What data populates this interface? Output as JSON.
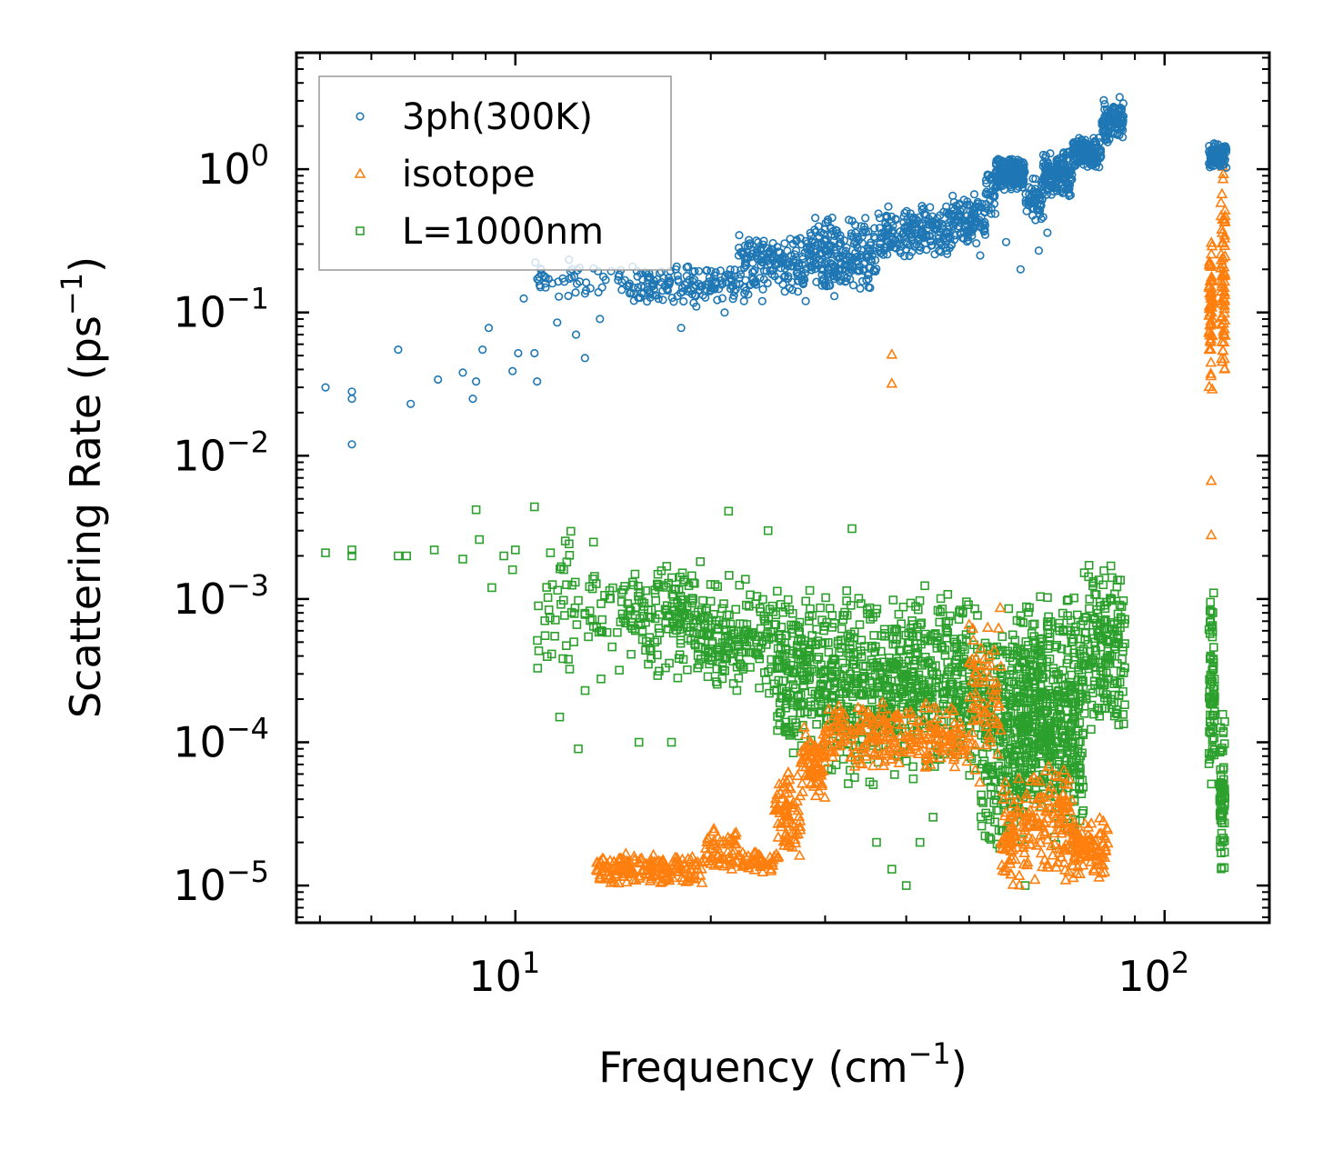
{
  "chart_data": {
    "type": "scatter",
    "title": "",
    "xlabel": {
      "prefix": "Frequency (cm",
      "sup": "−1",
      "suffix": ")"
    },
    "ylabel": {
      "prefix": "Scattering Rate (ps",
      "sup": "−1",
      "suffix": ")"
    },
    "xscale": "log",
    "yscale": "log",
    "xlim": [
      4.6,
      145
    ],
    "ylim": [
      5.5e-06,
      6.5
    ],
    "x_ticks": [
      {
        "base": "10",
        "exp": "1",
        "value": 10
      },
      {
        "base": "10",
        "exp": "2",
        "value": 100
      }
    ],
    "y_ticks": [
      {
        "base": "10",
        "exp": "0",
        "value": 1
      },
      {
        "base": "10",
        "exp": "−1",
        "value": 0.1
      },
      {
        "base": "10",
        "exp": "−2",
        "value": 0.01
      },
      {
        "base": "10",
        "exp": "−3",
        "value": 0.001
      },
      {
        "base": "10",
        "exp": "−4",
        "value": 0.0001
      },
      {
        "base": "10",
        "exp": "−5",
        "value": 1e-05
      }
    ],
    "legend_position": "top-left",
    "series": [
      {
        "name": "3ph(300K)",
        "marker": "circle",
        "color": "#1f77b4",
        "points": [
          [
            5.1,
            0.03
          ],
          [
            5.6,
            0.028
          ],
          [
            5.6,
            0.025
          ],
          [
            5.6,
            0.012
          ],
          [
            6.6,
            0.055
          ],
          [
            6.9,
            0.023
          ],
          [
            7.6,
            0.034
          ],
          [
            8.3,
            0.038
          ],
          [
            8.6,
            0.025
          ],
          [
            8.7,
            0.033
          ],
          [
            8.9,
            0.055
          ],
          [
            9.1,
            0.078
          ],
          [
            9.9,
            0.039
          ],
          [
            10.1,
            0.052
          ],
          [
            10.3,
            0.125
          ],
          [
            10.7,
            0.052
          ],
          [
            10.8,
            0.033
          ],
          [
            11.6,
            0.085
          ],
          [
            12.4,
            0.07
          ],
          [
            12.8,
            0.048
          ],
          [
            13.5,
            0.09
          ],
          [
            18.0,
            0.078
          ],
          [
            19.0,
            0.11
          ],
          [
            21.0,
            0.1
          ],
          [
            22.5,
            0.12
          ],
          [
            24.0,
            0.12
          ],
          [
            26.0,
            0.14
          ],
          [
            28.0,
            0.12
          ],
          [
            31.0,
            0.13
          ],
          [
            35.0,
            0.15
          ],
          [
            45.0,
            0.27
          ],
          [
            52.0,
            0.25
          ],
          [
            57.0,
            0.31
          ],
          [
            60.0,
            0.2
          ],
          [
            64.0,
            0.27
          ],
          [
            66.0,
            0.36
          ]
        ],
        "bands": [
          {
            "x0": 10.6,
            "x1": 14.5,
            "ylo": 0.11,
            "yhi": 0.26,
            "n": 45
          },
          {
            "x0": 14.5,
            "x1": 22.0,
            "ylo": 0.11,
            "yhi": 0.22,
            "n": 150
          },
          {
            "x0": 22.0,
            "x1": 28.0,
            "ylo": 0.13,
            "yhi": 0.36,
            "n": 160
          },
          {
            "x0": 28.0,
            "x1": 36.0,
            "ylo": 0.14,
            "yhi": 0.48,
            "n": 220
          },
          {
            "x0": 36.0,
            "x1": 47.0,
            "ylo": 0.23,
            "yhi": 0.6,
            "n": 200
          },
          {
            "x0": 47.0,
            "x1": 53.0,
            "ylo": 0.3,
            "yhi": 0.7,
            "n": 100
          },
          {
            "x0": 53.0,
            "x1": 55.0,
            "ylo": 0.4,
            "yhi": 1.2,
            "n": 30
          },
          {
            "x0": 55.0,
            "x1": 61.0,
            "ylo": 0.7,
            "yhi": 1.25,
            "n": 170
          },
          {
            "x0": 61.0,
            "x1": 65.0,
            "ylo": 0.4,
            "yhi": 0.9,
            "n": 60
          },
          {
            "x0": 65.0,
            "x1": 72.0,
            "ylo": 0.6,
            "yhi": 1.4,
            "n": 160
          },
          {
            "x0": 72.0,
            "x1": 80.0,
            "ylo": 1.0,
            "yhi": 1.7,
            "n": 160
          },
          {
            "x0": 80.0,
            "x1": 86.5,
            "ylo": 1.5,
            "yhi": 3.3,
            "n": 110
          },
          {
            "x0": 117.0,
            "x1": 124.5,
            "ylo": 1.0,
            "yhi": 1.6,
            "n": 110
          }
        ]
      },
      {
        "name": "isotope",
        "marker": "triangle",
        "color": "#ff7f0e",
        "points": [
          [
            38.0,
            0.051
          ],
          [
            38.0,
            0.032
          ],
          [
            118.0,
            0.0067
          ],
          [
            118.0,
            0.0028
          ]
        ],
        "bands": [
          {
            "x0": 13.3,
            "x1": 19.5,
            "ylo": 1e-05,
            "yhi": 1.7e-05,
            "n": 170
          },
          {
            "x0": 19.5,
            "x1": 22.0,
            "ylo": 1.2e-05,
            "yhi": 2.6e-05,
            "n": 55
          },
          {
            "x0": 22.0,
            "x1": 25.0,
            "ylo": 1.2e-05,
            "yhi": 1.8e-05,
            "n": 45
          },
          {
            "x0": 25.0,
            "x1": 27.5,
            "ylo": 1.3e-05,
            "yhi": 7e-05,
            "n": 80
          },
          {
            "x0": 27.5,
            "x1": 30.0,
            "ylo": 4e-05,
            "yhi": 0.00013,
            "n": 80
          },
          {
            "x0": 30.0,
            "x1": 38.0,
            "ylo": 6e-05,
            "yhi": 0.0002,
            "n": 120
          },
          {
            "x0": 38.0,
            "x1": 50.0,
            "ylo": 6e-05,
            "yhi": 0.0002,
            "n": 120
          },
          {
            "x0": 50.0,
            "x1": 56.0,
            "ylo": 4e-05,
            "yhi": 0.0009,
            "n": 70
          },
          {
            "x0": 56.0,
            "x1": 62.0,
            "ylo": 1e-05,
            "yhi": 6e-05,
            "n": 80
          },
          {
            "x0": 62.0,
            "x1": 72.0,
            "ylo": 1e-05,
            "yhi": 8e-05,
            "n": 110
          },
          {
            "x0": 72.0,
            "x1": 82.0,
            "ylo": 1.1e-05,
            "yhi": 3e-05,
            "n": 110
          },
          {
            "x0": 117.0,
            "x1": 118.6,
            "ylo": 0.025,
            "yhi": 0.35,
            "n": 60
          },
          {
            "x0": 122.0,
            "x1": 124.0,
            "ylo": 0.02,
            "yhi": 1.5,
            "n": 70
          }
        ]
      },
      {
        "name": "L=1000nm",
        "marker": "square",
        "color": "#2ca02c",
        "points": [
          [
            5.1,
            0.0021
          ],
          [
            5.6,
            0.0022
          ],
          [
            5.6,
            0.002
          ],
          [
            6.6,
            0.002
          ],
          [
            6.8,
            0.002
          ],
          [
            7.5,
            0.0022
          ],
          [
            8.3,
            0.0019
          ],
          [
            8.7,
            0.0042
          ],
          [
            8.8,
            0.0026
          ],
          [
            9.2,
            0.0012
          ],
          [
            9.6,
            0.002
          ],
          [
            9.9,
            0.0016
          ],
          [
            10.0,
            0.0022
          ],
          [
            10.7,
            0.0044
          ],
          [
            11.5,
            0.00055
          ],
          [
            11.7,
            0.00015
          ],
          [
            12.5,
            9e-05
          ],
          [
            15.5,
            0.0001
          ],
          [
            17.4,
            0.0001
          ],
          [
            21.3,
            0.0041
          ],
          [
            24.5,
            0.003
          ],
          [
            33.0,
            0.0031
          ],
          [
            36.0,
            2e-05
          ],
          [
            38.0,
            1.3e-05
          ],
          [
            40.0,
            1e-05
          ],
          [
            42.0,
            2e-05
          ],
          [
            44.0,
            3e-05
          ],
          [
            61.0,
            1e-05
          ]
        ],
        "bands": [
          {
            "x0": 10.8,
            "x1": 14.5,
            "ylo": 0.0002,
            "yhi": 0.0032,
            "n": 70
          },
          {
            "x0": 14.5,
            "x1": 19.5,
            "ylo": 0.00025,
            "yhi": 0.0022,
            "n": 160
          },
          {
            "x0": 19.5,
            "x1": 25.0,
            "ylo": 0.0002,
            "yhi": 0.0015,
            "n": 160
          },
          {
            "x0": 25.0,
            "x1": 30.0,
            "ylo": 8e-05,
            "yhi": 0.0012,
            "n": 200
          },
          {
            "x0": 30.0,
            "x1": 40.0,
            "ylo": 5e-05,
            "yhi": 0.0013,
            "n": 340
          },
          {
            "x0": 40.0,
            "x1": 52.0,
            "ylo": 5e-05,
            "yhi": 0.0013,
            "n": 300
          },
          {
            "x0": 52.0,
            "x1": 59.0,
            "ylo": 1.5e-05,
            "yhi": 0.0009,
            "n": 220
          },
          {
            "x0": 59.0,
            "x1": 66.0,
            "ylo": 2e-05,
            "yhi": 0.0011,
            "n": 260
          },
          {
            "x0": 66.0,
            "x1": 75.0,
            "ylo": 1.5e-05,
            "yhi": 0.0013,
            "n": 260
          },
          {
            "x0": 75.0,
            "x1": 87.0,
            "ylo": 0.0001,
            "yhi": 0.0021,
            "n": 170
          },
          {
            "x0": 117.0,
            "x1": 119.5,
            "ylo": 5e-05,
            "yhi": 0.0013,
            "n": 70
          },
          {
            "x0": 121.5,
            "x1": 124.0,
            "ylo": 1e-05,
            "yhi": 0.0002,
            "n": 70
          }
        ]
      }
    ]
  }
}
